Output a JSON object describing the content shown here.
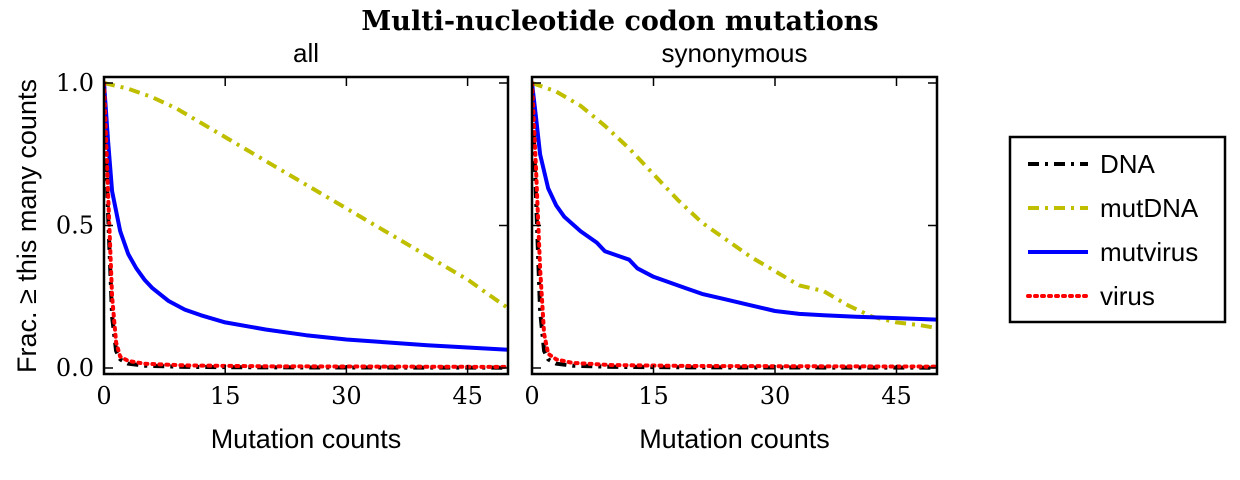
{
  "figure": {
    "title": "Multi-nucleotide codon mutations",
    "ylabel": "Frac. ≥ this many counts"
  },
  "chart_data": [
    {
      "type": "line",
      "title": "all",
      "xlabel": "Mutation counts",
      "ylabel": "Frac. ≥ this many counts",
      "xlim": [
        0,
        50
      ],
      "ylim": [
        0,
        1.0
      ],
      "xticks": [
        0,
        15,
        30,
        45
      ],
      "yticks": [
        0.0,
        0.5,
        1.0
      ],
      "ytick_labels": [
        "0.0",
        "0.5",
        "1.0"
      ],
      "series": [
        {
          "name": "DNA",
          "color": "#000000",
          "dash": "dashdot",
          "x": [
            0,
            0.5,
            1,
            1.5,
            2,
            3,
            5,
            10,
            20,
            50
          ],
          "y": [
            1.0,
            0.55,
            0.18,
            0.06,
            0.03,
            0.015,
            0.008,
            0.004,
            0.002,
            0.001
          ]
        },
        {
          "name": "mutDNA",
          "color": "#bfbf00",
          "dash": "dashdot",
          "x": [
            0,
            3,
            6,
            9,
            12,
            15,
            18,
            21,
            24,
            27,
            30,
            33,
            36,
            39,
            42,
            45,
            48,
            50
          ],
          "y": [
            1.0,
            0.98,
            0.95,
            0.91,
            0.86,
            0.81,
            0.76,
            0.71,
            0.66,
            0.61,
            0.56,
            0.51,
            0.46,
            0.41,
            0.36,
            0.31,
            0.25,
            0.21
          ]
        },
        {
          "name": "mutvirus",
          "color": "#0000ff",
          "dash": "solid",
          "x": [
            0,
            0.5,
            1,
            2,
            3,
            4,
            5,
            6,
            8,
            10,
            12,
            15,
            20,
            25,
            30,
            35,
            40,
            45,
            50
          ],
          "y": [
            1.0,
            0.8,
            0.62,
            0.48,
            0.4,
            0.35,
            0.31,
            0.28,
            0.235,
            0.205,
            0.185,
            0.16,
            0.135,
            0.115,
            0.1,
            0.09,
            0.08,
            0.072,
            0.064
          ]
        },
        {
          "name": "virus",
          "color": "#ff0000",
          "dash": "dotted",
          "x": [
            0,
            0.5,
            1,
            1.5,
            2,
            3,
            5,
            10,
            20,
            50
          ],
          "y": [
            1.0,
            0.62,
            0.25,
            0.09,
            0.04,
            0.025,
            0.015,
            0.009,
            0.006,
            0.004
          ]
        }
      ]
    },
    {
      "type": "line",
      "title": "synonymous",
      "xlabel": "Mutation counts",
      "xlim": [
        0,
        50
      ],
      "ylim": [
        0,
        1.0
      ],
      "xticks": [
        0,
        15,
        30,
        45
      ],
      "series": [
        {
          "name": "DNA",
          "color": "#000000",
          "dash": "dashdot",
          "x": [
            0,
            0.5,
            1,
            1.5,
            2,
            3,
            5,
            10,
            20,
            50
          ],
          "y": [
            1.0,
            0.6,
            0.2,
            0.06,
            0.03,
            0.015,
            0.008,
            0.004,
            0.002,
            0.001
          ]
        },
        {
          "name": "mutDNA",
          "color": "#bfbf00",
          "dash": "dashdot",
          "x": [
            0,
            3,
            6,
            9,
            12,
            15,
            18,
            21,
            24,
            27,
            30,
            33,
            36,
            39,
            42,
            45,
            48,
            50
          ],
          "y": [
            1.0,
            0.97,
            0.92,
            0.85,
            0.77,
            0.68,
            0.59,
            0.51,
            0.45,
            0.39,
            0.34,
            0.29,
            0.27,
            0.22,
            0.18,
            0.16,
            0.15,
            0.14
          ]
        },
        {
          "name": "mutvirus",
          "color": "#0000ff",
          "dash": "solid",
          "x": [
            0,
            0.5,
            1,
            2,
            3,
            4,
            6,
            8,
            9,
            11,
            12,
            13,
            15,
            17,
            19,
            21,
            24,
            27,
            30,
            33,
            36,
            40,
            45,
            50
          ],
          "y": [
            1.0,
            0.88,
            0.75,
            0.63,
            0.57,
            0.53,
            0.48,
            0.44,
            0.41,
            0.39,
            0.38,
            0.35,
            0.32,
            0.3,
            0.28,
            0.26,
            0.24,
            0.22,
            0.2,
            0.19,
            0.185,
            0.18,
            0.175,
            0.17
          ]
        },
        {
          "name": "virus",
          "color": "#ff0000",
          "dash": "dotted",
          "x": [
            0,
            0.5,
            1,
            1.5,
            2,
            3,
            5,
            10,
            20,
            50
          ],
          "y": [
            1.0,
            0.7,
            0.35,
            0.12,
            0.05,
            0.03,
            0.018,
            0.01,
            0.007,
            0.005
          ]
        }
      ]
    }
  ],
  "legend": {
    "position": "right",
    "entries": [
      {
        "label": "DNA",
        "color": "#000000",
        "dash": "dashdot"
      },
      {
        "label": "mutDNA",
        "color": "#bfbf00",
        "dash": "dashdot"
      },
      {
        "label": "mutvirus",
        "color": "#0000ff",
        "dash": "solid"
      },
      {
        "label": "virus",
        "color": "#ff0000",
        "dash": "dotted"
      }
    ]
  }
}
